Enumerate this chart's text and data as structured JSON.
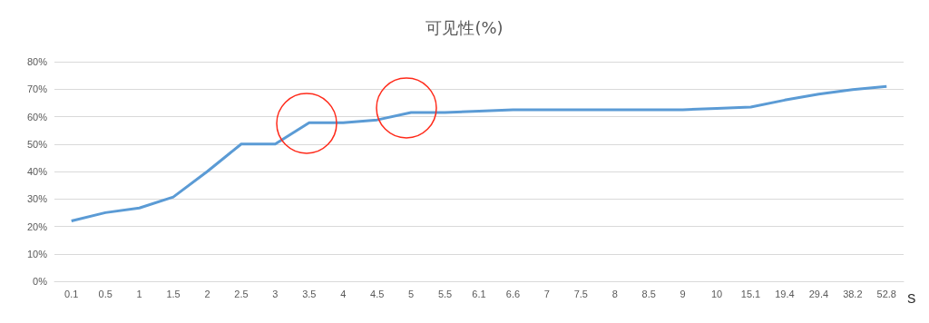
{
  "chart_data": {
    "type": "line",
    "title": "可见性(%)",
    "xlabel": "S",
    "categories": [
      "0.1",
      "0.5",
      "1",
      "1.5",
      "2",
      "2.5",
      "3",
      "3.5",
      "4",
      "4.5",
      "5",
      "5.5",
      "6.1",
      "6.6",
      "7",
      "7.5",
      "8",
      "8.5",
      "9",
      "10",
      "15.1",
      "19.4",
      "29.4",
      "38.2",
      "52.8"
    ],
    "series": [
      {
        "color": "#5b9bd5",
        "values": [
          22,
          25,
          26.7,
          30.7,
          40,
          50,
          50,
          57.8,
          57.8,
          58.8,
          61.5,
          61.5,
          62,
          62.5,
          62.5,
          62.5,
          62.5,
          62.5,
          62.5,
          63,
          63.5,
          66,
          68.2,
          69.8,
          71
        ]
      }
    ],
    "ylim": [
      0,
      80
    ],
    "yticks": [
      {
        "value": 0,
        "label": "0%"
      },
      {
        "value": 10,
        "label": "10%"
      },
      {
        "value": 20,
        "label": "20%"
      },
      {
        "value": 30,
        "label": "30%"
      },
      {
        "value": 40,
        "label": "40%"
      },
      {
        "value": 50,
        "label": "50%"
      },
      {
        "value": 60,
        "label": "60%"
      },
      {
        "value": 70,
        "label": "70%"
      },
      {
        "value": 80,
        "label": "80%"
      }
    ],
    "grid": "y",
    "marker": "none",
    "line_style": "solid"
  }
}
